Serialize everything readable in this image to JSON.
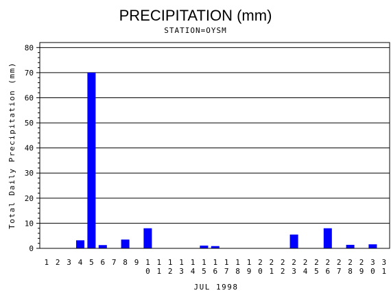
{
  "chart_data": {
    "type": "bar",
    "title": "PRECIPITATION (mm)",
    "subtitle": "STATION=OYSM",
    "xlabel": "JUL 1998",
    "ylabel": "Total Daily Precipitation (mm)",
    "ylim": [
      0,
      82
    ],
    "yticks": [
      0,
      10,
      20,
      30,
      40,
      50,
      60,
      70,
      80
    ],
    "grid": true,
    "bar_color": "#0000ff",
    "categories": [
      "1",
      "2",
      "3",
      "4",
      "5",
      "6",
      "7",
      "8",
      "9",
      "10",
      "11",
      "12",
      "13",
      "14",
      "15",
      "16",
      "17",
      "18",
      "19",
      "20",
      "21",
      "22",
      "23",
      "24",
      "25",
      "26",
      "27",
      "28",
      "29",
      "30",
      "31"
    ],
    "values": [
      0,
      0,
      0,
      3.2,
      70,
      1.3,
      0,
      3.5,
      0,
      8,
      0,
      0,
      0,
      0,
      1.1,
      0.9,
      0,
      0,
      0,
      0,
      0,
      0,
      5.5,
      0,
      0,
      8,
      0,
      1.4,
      0,
      1.6,
      0
    ]
  }
}
